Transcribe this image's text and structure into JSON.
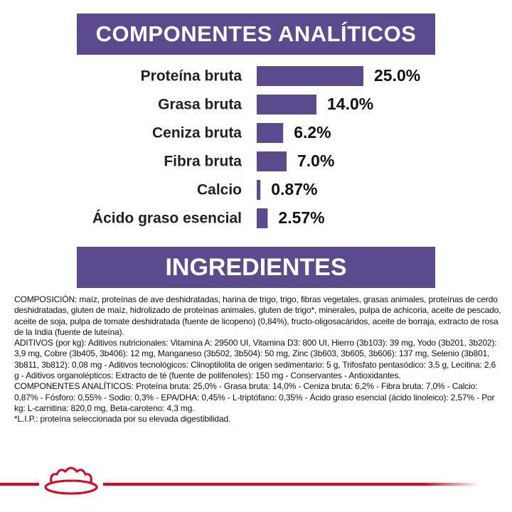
{
  "chart_data": {
    "type": "bar",
    "orientation": "horizontal",
    "title": "COMPONENTES ANALÍTICOS",
    "categories": [
      "Proteína bruta",
      "Grasa bruta",
      "Ceniza bruta",
      "Fibra bruta",
      "Calcio",
      "Ácido graso esencial"
    ],
    "values": [
      25.0,
      14.0,
      6.2,
      7.0,
      0.87,
      2.57
    ],
    "value_labels": [
      "25.0%",
      "14.0%",
      "6.2%",
      "7.0%",
      "0.87%",
      "2.57%"
    ],
    "color": "#5c4a8e"
  },
  "ingredients": {
    "title": "INGREDIENTES",
    "paragraphs": [
      "COMPOSICIÓN: maíz, proteínas de ave deshidratadas, harina de trigo, trigo, fibras vegetales, grasas animales, proteínas de cerdo deshidratadas, gluten de maíz, hidrolizado de proteínas animales, gluten de trigo*, minerales, pulpa de achicoria, aceite de pescado, aceite de soja, pulpa de tomate deshidratada (fuente de licopeno) (0,84%), fructo-oligosacáridos, aceite de borraja, extracto de rosa de la India (fuente de luteína).",
      "ADITIVOS (por kg): Aditivos nutricionales: Vitamina A: 29500 UI, Vitamina D3: 800 UI, Hierro (3b103): 39 mg, Yodo (3b201, 3b202): 3,9 mg, Cobre (3b405, 3b406): 12 mg, Manganeso (3b502, 3b504): 50 mg, Zinc (3b603, 3b605, 3b606): 137 mg, Selenio (3b801, 3b811, 3b812): 0,08 mg - Aditivos tecnológicos: Clinoptilolita de origen sedimentario: 5 g, Trifosfato pentasódico: 3,5 g, Lecitina: 2,6 g - Aditivos organolépticos: Extracto de té (fuente de polifenoles): 150 mg - Conservantes - Antioxidantes.",
      "COMPONENTES ANALÍTICOS: Proteína bruta: 25,0% - Grasa bruta: 14,0% - Ceniza bruta: 6,2% - Fibra bruta: 7,0% - Calcio: 0,87% - Fósforo: 0,55% - Sodio: 0,3% - EPA/DHA: 0,45% - L-triptófano: 0,35% - Ácido graso esencial (ácido linoleico): 2,57% - Por kg: L-carnitina: 820,0 mg, Beta-caroteno: 4,3 mg.",
      "*L.I.P.: proteína seleccionada por su elevada digestibilidad."
    ]
  }
}
